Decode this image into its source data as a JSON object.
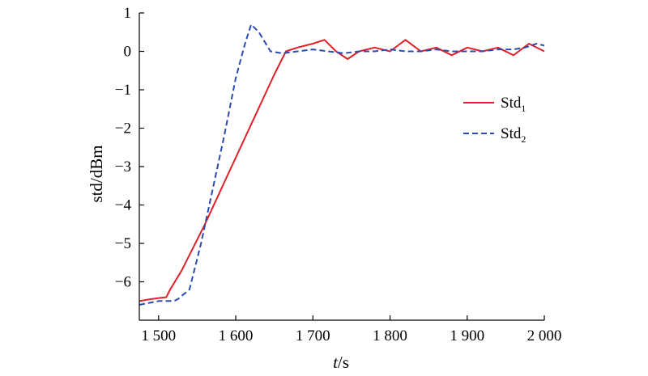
{
  "chart_data": {
    "type": "line",
    "xlabel_italic": "t",
    "xlabel_unit": "/s",
    "ylabel": "std/dBm",
    "xlim": [
      1475,
      2000
    ],
    "ylim": [
      -7,
      1
    ],
    "grid": false,
    "legend_position": "right",
    "x_ticks": [
      1500,
      1600,
      1700,
      1800,
      1900,
      2000
    ],
    "x_tick_labels": [
      "1 500",
      "1 600",
      "1 700",
      "1 800",
      "1 900",
      "2 000"
    ],
    "y_ticks": [
      1,
      0,
      -1,
      -2,
      -3,
      -4,
      -5,
      -6
    ],
    "y_tick_labels": [
      "1",
      "0",
      "−1",
      "−2",
      "−3",
      "−4",
      "−5",
      "−6"
    ],
    "series": [
      {
        "name": "Std",
        "name_subscript": "1",
        "color": "#e0202a",
        "dash": "solid",
        "x": [
          1475,
          1490,
          1510,
          1515,
          1530,
          1560,
          1590,
          1620,
          1650,
          1665,
          1680,
          1700,
          1715,
          1730,
          1745,
          1760,
          1780,
          1800,
          1820,
          1840,
          1860,
          1880,
          1900,
          1920,
          1940,
          1960,
          1980,
          2000
        ],
        "y": [
          -6.5,
          -6.45,
          -6.4,
          -6.2,
          -5.7,
          -4.5,
          -3.2,
          -1.9,
          -0.6,
          0.0,
          0.1,
          0.2,
          0.3,
          0.0,
          -0.2,
          0.0,
          0.1,
          0.0,
          0.3,
          0.0,
          0.1,
          -0.1,
          0.1,
          0.0,
          0.1,
          -0.1,
          0.2,
          0.0
        ]
      },
      {
        "name": "Std",
        "name_subscript": "2",
        "color": "#2b4bb0",
        "dash": "dashed",
        "x": [
          1475,
          1500,
          1520,
          1525,
          1540,
          1555,
          1570,
          1585,
          1600,
          1612,
          1620,
          1630,
          1645,
          1660,
          1680,
          1700,
          1720,
          1740,
          1760,
          1780,
          1800,
          1820,
          1840,
          1860,
          1880,
          1900,
          1920,
          1940,
          1960,
          1975,
          1990,
          2000
        ],
        "y": [
          -6.6,
          -6.5,
          -6.5,
          -6.45,
          -6.2,
          -5.0,
          -3.6,
          -2.2,
          -0.7,
          0.2,
          0.7,
          0.5,
          0.0,
          -0.05,
          0.0,
          0.05,
          0.0,
          -0.05,
          0.0,
          0.0,
          0.05,
          0.0,
          0.0,
          0.05,
          0.0,
          0.0,
          0.0,
          0.05,
          0.05,
          0.1,
          0.2,
          0.15
        ]
      }
    ]
  }
}
